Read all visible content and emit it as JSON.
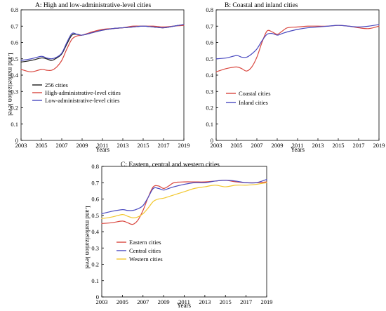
{
  "chart_data": [
    {
      "type": "line",
      "title": "A: High and low-administrative-level cities",
      "xlabel": "Years",
      "ylabel": "Land marketization level",
      "xlim": [
        2003,
        2019
      ],
      "ylim": [
        0,
        0.8
      ],
      "xticks": [
        "2003",
        "2005",
        "2007",
        "2009",
        "2011",
        "2013",
        "2015",
        "2017",
        "2019"
      ],
      "yticks": [
        "0",
        "0.1",
        "0.2",
        "0.3",
        "0.4",
        "0.5",
        "0.6",
        "0.7",
        "0.8"
      ],
      "grid": false,
      "legend_position": "center",
      "series": [
        {
          "name": "256 cities",
          "color": "#1a1a1a",
          "x": [
            2003,
            2004,
            2005,
            2005.5,
            2006,
            2006.5,
            2007,
            2007.5,
            2008,
            2008.5,
            2009,
            2010,
            2011,
            2012,
            2013,
            2014,
            2015,
            2016,
            2017,
            2018,
            2019
          ],
          "y": [
            0.48,
            0.49,
            0.505,
            0.5,
            0.49,
            0.505,
            0.53,
            0.59,
            0.645,
            0.65,
            0.645,
            0.66,
            0.675,
            0.685,
            0.69,
            0.695,
            0.7,
            0.695,
            0.69,
            0.7,
            0.71
          ]
        },
        {
          "name": "High-administrative-level cities",
          "color": "#d9473f",
          "x": [
            2003,
            2004,
            2005,
            2005.5,
            2006,
            2006.5,
            2007,
            2007.5,
            2008,
            2008.5,
            2009,
            2010,
            2011,
            2012,
            2013,
            2014,
            2015,
            2016,
            2017,
            2018,
            2019
          ],
          "y": [
            0.435,
            0.42,
            0.435,
            0.43,
            0.43,
            0.45,
            0.49,
            0.56,
            0.62,
            0.64,
            0.645,
            0.665,
            0.68,
            0.685,
            0.69,
            0.7,
            0.7,
            0.7,
            0.695,
            0.7,
            0.705
          ]
        },
        {
          "name": "Low-administrative-level cities",
          "color": "#4a4ac0",
          "x": [
            2003,
            2004,
            2005,
            2005.5,
            2006,
            2006.5,
            2007,
            2007.5,
            2008,
            2008.5,
            2009,
            2010,
            2011,
            2012,
            2013,
            2014,
            2015,
            2016,
            2017,
            2018,
            2019
          ],
          "y": [
            0.49,
            0.5,
            0.515,
            0.505,
            0.5,
            0.51,
            0.535,
            0.6,
            0.655,
            0.65,
            0.645,
            0.66,
            0.675,
            0.685,
            0.69,
            0.695,
            0.7,
            0.695,
            0.69,
            0.7,
            0.71
          ]
        }
      ]
    },
    {
      "type": "line",
      "title": "B: Coastal and inland cities",
      "xlabel": "Years",
      "ylabel": "",
      "xlim": [
        2003,
        2019
      ],
      "ylim": [
        0,
        0.8
      ],
      "xticks": [
        "2003",
        "2005",
        "2007",
        "2009",
        "2011",
        "2013",
        "2015",
        "2017",
        "2019"
      ],
      "yticks": [
        "0",
        "0.1",
        "0.2",
        "0.3",
        "0.4",
        "0.5",
        "0.6",
        "0.7",
        "0.8"
      ],
      "grid": false,
      "legend_position": "center",
      "series": [
        {
          "name": "Coastal cities",
          "color": "#d9473f",
          "x": [
            2003,
            2004,
            2005,
            2005.5,
            2006,
            2006.5,
            2007,
            2007.5,
            2008,
            2008.5,
            2009,
            2009.5,
            2010,
            2011,
            2012,
            2013,
            2014,
            2015,
            2016,
            2017,
            2018,
            2019
          ],
          "y": [
            0.42,
            0.44,
            0.45,
            0.44,
            0.425,
            0.45,
            0.51,
            0.6,
            0.67,
            0.665,
            0.65,
            0.67,
            0.69,
            0.695,
            0.7,
            0.7,
            0.7,
            0.705,
            0.7,
            0.69,
            0.685,
            0.7
          ]
        },
        {
          "name": "Inland cities",
          "color": "#4a4ac0",
          "x": [
            2003,
            2004,
            2005,
            2005.5,
            2006,
            2006.5,
            2007,
            2007.5,
            2008,
            2008.5,
            2009,
            2009.5,
            2010,
            2011,
            2012,
            2013,
            2014,
            2015,
            2016,
            2017,
            2018,
            2019
          ],
          "y": [
            0.5,
            0.505,
            0.52,
            0.51,
            0.51,
            0.53,
            0.56,
            0.61,
            0.65,
            0.655,
            0.645,
            0.655,
            0.665,
            0.68,
            0.69,
            0.695,
            0.7,
            0.705,
            0.7,
            0.695,
            0.7,
            0.71
          ]
        }
      ]
    },
    {
      "type": "line",
      "title": "C: Eastern, central and western cities",
      "xlabel": "Years",
      "ylabel": "Land marketization level",
      "xlim": [
        2003,
        2019
      ],
      "ylim": [
        0,
        0.8
      ],
      "xticks": [
        "2003",
        "2005",
        "2007",
        "2009",
        "2011",
        "2013",
        "2015",
        "2017",
        "2019"
      ],
      "yticks": [
        "0",
        "0.1",
        "0.2",
        "0.3",
        "0.4",
        "0.5",
        "0.6",
        "0.7",
        "0.8"
      ],
      "grid": false,
      "legend_position": "center",
      "series": [
        {
          "name": "Eastern cities",
          "color": "#d9473f",
          "x": [
            2003,
            2004,
            2005,
            2005.5,
            2006,
            2006.5,
            2007,
            2007.5,
            2008,
            2008.5,
            2009,
            2009.5,
            2010,
            2011,
            2012,
            2013,
            2014,
            2015,
            2016,
            2017,
            2018,
            2019
          ],
          "y": [
            0.45,
            0.455,
            0.465,
            0.455,
            0.445,
            0.47,
            0.53,
            0.61,
            0.675,
            0.68,
            0.665,
            0.68,
            0.7,
            0.705,
            0.705,
            0.705,
            0.71,
            0.715,
            0.705,
            0.7,
            0.7,
            0.705
          ]
        },
        {
          "name": "Central cities",
          "color": "#4a4ac0",
          "x": [
            2003,
            2004,
            2005,
            2005.5,
            2006,
            2006.5,
            2007,
            2007.5,
            2008,
            2008.5,
            2009,
            2009.5,
            2010,
            2011,
            2012,
            2013,
            2014,
            2015,
            2016,
            2017,
            2018,
            2019
          ],
          "y": [
            0.51,
            0.525,
            0.535,
            0.53,
            0.53,
            0.54,
            0.56,
            0.61,
            0.665,
            0.665,
            0.655,
            0.665,
            0.675,
            0.69,
            0.7,
            0.7,
            0.71,
            0.715,
            0.71,
            0.7,
            0.7,
            0.72
          ]
        },
        {
          "name": "Western cities",
          "color": "#f2c830",
          "x": [
            2003,
            2004,
            2005,
            2005.5,
            2006,
            2006.5,
            2007,
            2007.5,
            2008,
            2008.5,
            2009,
            2009.5,
            2010,
            2011,
            2012,
            2013,
            2014,
            2015,
            2016,
            2017,
            2018,
            2019
          ],
          "y": [
            0.48,
            0.49,
            0.505,
            0.495,
            0.485,
            0.49,
            0.51,
            0.545,
            0.585,
            0.6,
            0.605,
            0.615,
            0.625,
            0.645,
            0.665,
            0.675,
            0.685,
            0.675,
            0.685,
            0.685,
            0.69,
            0.7
          ]
        }
      ]
    }
  ]
}
